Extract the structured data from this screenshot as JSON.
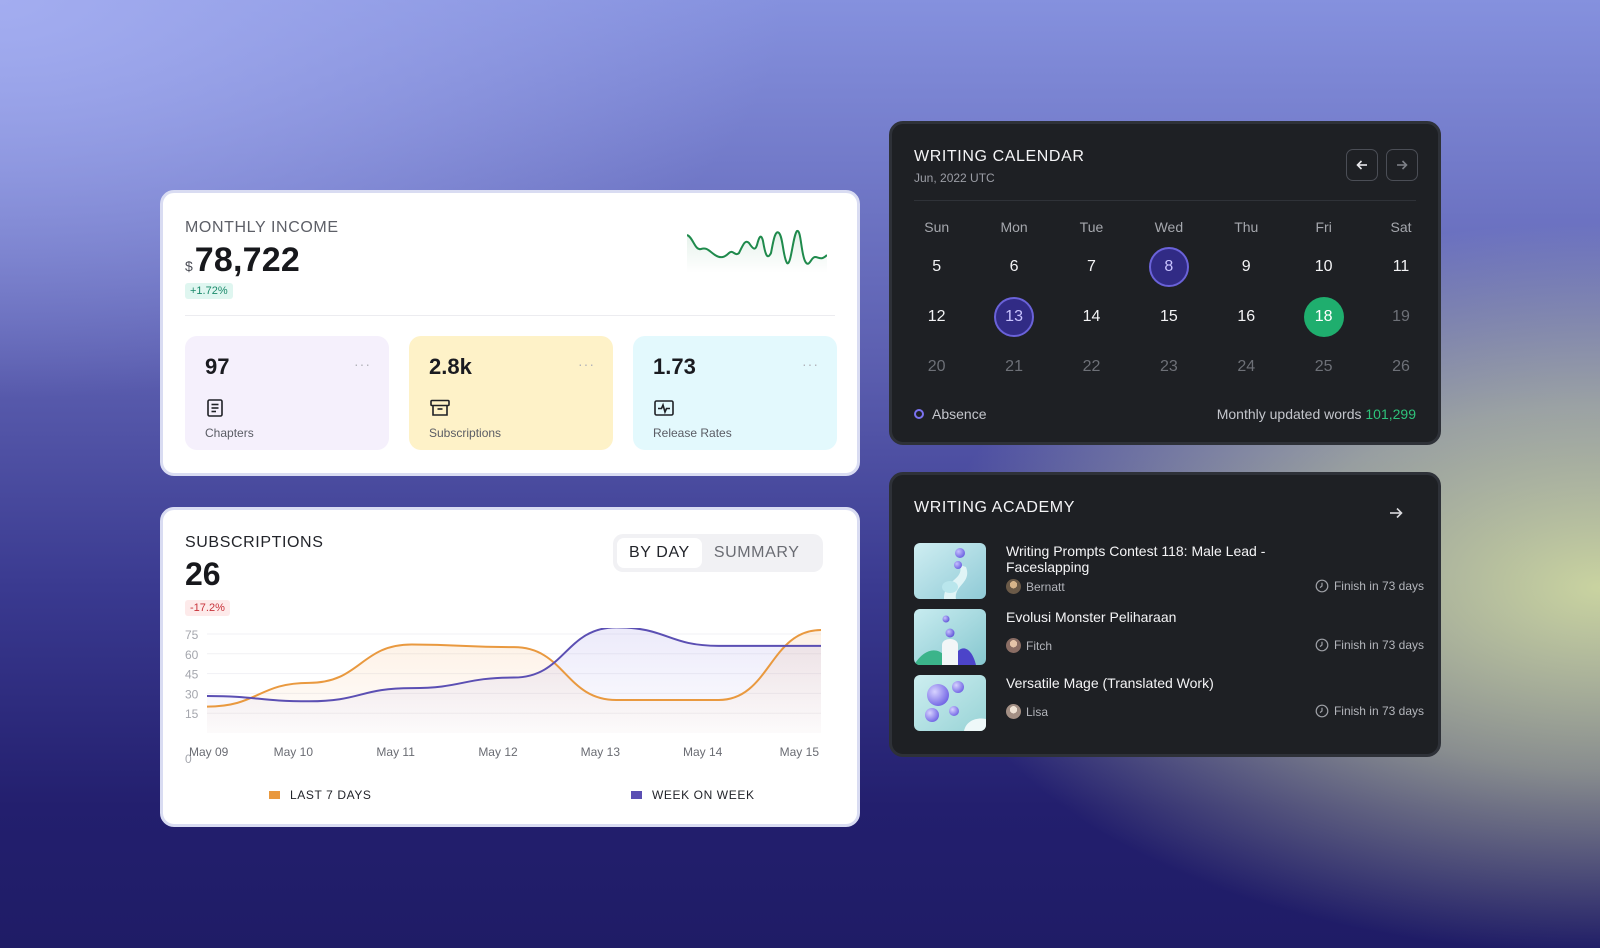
{
  "income": {
    "title": "MONTHLY INCOME",
    "currency": "$",
    "amount": "78,722",
    "change": "+1.72%",
    "stats": [
      {
        "value": "97",
        "label": "Chapters",
        "more": "···",
        "icon": "document-icon",
        "color": "#f5f0fc"
      },
      {
        "value": "2.8k",
        "label": "Subscriptions",
        "more": "···",
        "icon": "archive-box-icon",
        "color": "#fef2c8"
      },
      {
        "value": "1.73",
        "label": "Release Rates",
        "more": "···",
        "icon": "pulse-monitor-icon",
        "color": "#e3f9fd"
      }
    ]
  },
  "subscriptions": {
    "title": "SUBSCRIPTIONS",
    "value": "26",
    "change": "-17.2%",
    "tabs": [
      {
        "label": "BY DAY",
        "active": true
      },
      {
        "label": "SUMMARY",
        "active": false
      }
    ],
    "legend": [
      {
        "label": "LAST 7 DAYS",
        "color": "#e9993f"
      },
      {
        "label": "WEEK ON WEEK",
        "color": "#5b4fb3"
      }
    ]
  },
  "chart_data": {
    "type": "area",
    "x": [
      "May 09",
      "May 10",
      "May 11",
      "May 12",
      "May 13",
      "May 14",
      "May 15"
    ],
    "yticks": [
      0,
      15,
      30,
      45,
      60,
      75
    ],
    "ylim": [
      0,
      78
    ],
    "series": [
      {
        "name": "LAST 7 DAYS",
        "color": "#e9993f",
        "values": [
          20,
          38,
          67,
          65,
          25,
          25,
          78
        ]
      },
      {
        "name": "WEEK ON WEEK",
        "color": "#5b4fb3",
        "values": [
          28,
          24,
          34,
          42,
          80,
          66,
          66
        ]
      }
    ],
    "grid": true,
    "legend": "bottom"
  },
  "calendar": {
    "title": "WRITING CALENDAR",
    "subtitle": "Jun, 2022 UTC",
    "weekdays": [
      "Sun",
      "Mon",
      "Tue",
      "Wed",
      "Thu",
      "Fri",
      "Sat"
    ],
    "days": [
      {
        "d": "5",
        "state": "normal"
      },
      {
        "d": "6",
        "state": "normal"
      },
      {
        "d": "7",
        "state": "normal"
      },
      {
        "d": "8",
        "state": "absent"
      },
      {
        "d": "9",
        "state": "normal"
      },
      {
        "d": "10",
        "state": "normal"
      },
      {
        "d": "11",
        "state": "normal"
      },
      {
        "d": "12",
        "state": "normal"
      },
      {
        "d": "13",
        "state": "absent"
      },
      {
        "d": "14",
        "state": "normal"
      },
      {
        "d": "15",
        "state": "normal"
      },
      {
        "d": "16",
        "state": "normal"
      },
      {
        "d": "18",
        "state": "today"
      },
      {
        "d": "19",
        "state": "muted"
      },
      {
        "d": "20",
        "state": "muted"
      },
      {
        "d": "21",
        "state": "muted"
      },
      {
        "d": "22",
        "state": "muted"
      },
      {
        "d": "23",
        "state": "muted"
      },
      {
        "d": "24",
        "state": "muted"
      },
      {
        "d": "25",
        "state": "muted"
      },
      {
        "d": "26",
        "state": "muted"
      }
    ],
    "absence_label": "Absence",
    "words_label": "Monthly updated words",
    "words_value": "101,299"
  },
  "academy": {
    "title": "WRITING ACADEMY",
    "items": [
      {
        "title": "Writing Prompts Contest 118: Male Lead - Faceslapping",
        "author": "Bernatt",
        "finish": "Finish in 73 days"
      },
      {
        "title": "Evolusi Monster Peliharaan",
        "author": "Fitch",
        "finish": "Finish in 73 days"
      },
      {
        "title": "Versatile Mage (Translated Work)",
        "author": "Lisa",
        "finish": "Finish in 73 days"
      }
    ]
  }
}
